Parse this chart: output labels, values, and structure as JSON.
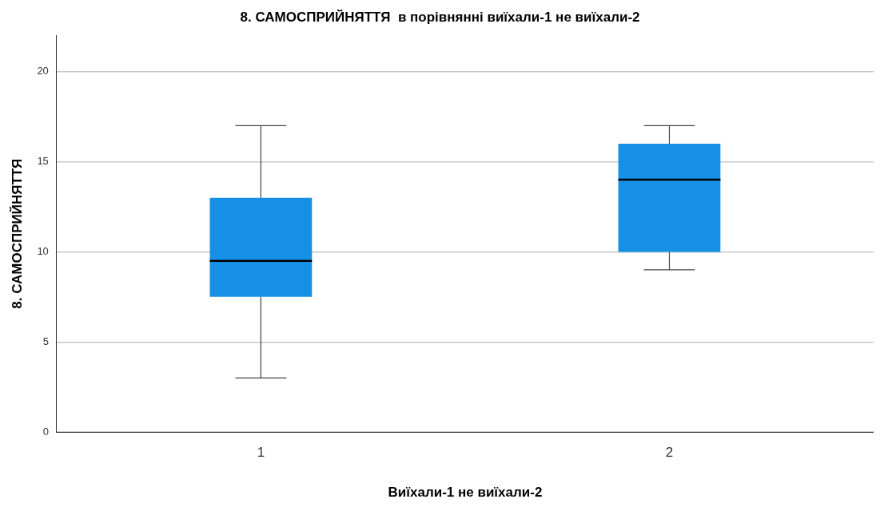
{
  "chart_data": {
    "type": "box",
    "title": "8. САМОСПРИЙНЯТТЯ  в порівнянні виїхали-1 не виїхали-2",
    "xlabel": "Виїхали-1 не виїхали-2",
    "ylabel": "8. САМОСПРИЙНЯТТЯ",
    "categories": [
      "1",
      "2"
    ],
    "color": "#1590e6",
    "boxes": [
      {
        "low": 3,
        "q1": 7.5,
        "median": 9.5,
        "q3": 13,
        "high": 17
      },
      {
        "low": 9,
        "q1": 10,
        "median": 14,
        "q3": 16,
        "high": 17
      }
    ],
    "ylim": [
      0,
      22
    ],
    "yticks": [
      0,
      5,
      10,
      15,
      20
    ],
    "grid": "y"
  }
}
